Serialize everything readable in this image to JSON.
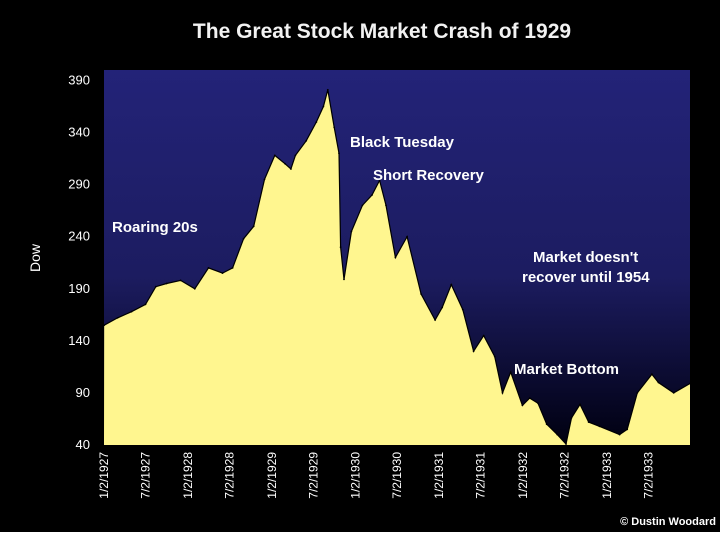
{
  "chart_data": {
    "type": "area",
    "title": "The Great Stock Market Crash of 1929",
    "xlabel": "",
    "ylabel": "Dow",
    "ylim": [
      40,
      400
    ],
    "yticks": [
      40,
      90,
      140,
      190,
      240,
      290,
      340,
      390
    ],
    "x_tick_labels": [
      "1/2/1927",
      "7/2/1927",
      "1/2/1928",
      "7/2/1928",
      "1/2/1929",
      "7/2/1929",
      "1/2/1930",
      "7/2/1930",
      "1/2/1931",
      "7/2/1931",
      "1/2/1932",
      "7/2/1932",
      "1/2/1933",
      "7/2/1933"
    ],
    "xlim": [
      "1927-01-01",
      "1933-12-31"
    ],
    "grid": false,
    "legend": "none",
    "colors": {
      "fill": "#fff68f",
      "line": "#000000",
      "plot_top": "#232378",
      "plot_mid": "#1c1c60",
      "plot_bottom": "#000010"
    },
    "series": [
      {
        "x": [
          "1927-01-02",
          "1927-03-01",
          "1927-05-01",
          "1927-07-01",
          "1927-08-15",
          "1927-10-01",
          "1927-12-01",
          "1928-02-01",
          "1928-04-01",
          "1928-06-01",
          "1928-07-15",
          "1928-09-01",
          "1928-10-15",
          "1928-12-01",
          "1929-01-15",
          "1929-03-01",
          "1929-03-26",
          "1929-04-15",
          "1929-06-01",
          "1929-07-15",
          "1929-08-15",
          "1929-09-03",
          "1929-10-01",
          "1929-10-22",
          "1929-10-29",
          "1929-11-13",
          "1929-12-15",
          "1930-02-01",
          "1930-03-15",
          "1930-04-17",
          "1930-05-15",
          "1930-06-25",
          "1930-08-15",
          "1930-10-15",
          "1930-12-15",
          "1931-01-15",
          "1931-02-24",
          "1931-04-15",
          "1931-06-01",
          "1931-07-15",
          "1931-09-01",
          "1931-10-05",
          "1931-11-10",
          "1931-12-31",
          "1932-02-01",
          "1932-03-08",
          "1932-04-15",
          "1932-05-31",
          "1932-07-08",
          "1932-08-01",
          "1932-09-07",
          "1932-10-15",
          "1932-12-01",
          "1933-02-27",
          "1933-04-01",
          "1933-05-15",
          "1933-07-18",
          "1933-08-15",
          "1933-10-21",
          "1933-12-31"
        ],
        "values": [
          155,
          162,
          168,
          175,
          192,
          195,
          198,
          190,
          210,
          205,
          210,
          238,
          250,
          295,
          318,
          310,
          305,
          318,
          332,
          350,
          365,
          381,
          345,
          320,
          230,
          199,
          245,
          270,
          280,
          294,
          270,
          220,
          240,
          185,
          160,
          172,
          194,
          170,
          130,
          145,
          125,
          90,
          110,
          78,
          85,
          80,
          60,
          50,
          41,
          66,
          79,
          62,
          58,
          50,
          55,
          90,
          108,
          100,
          90,
          99
        ]
      }
    ],
    "annotations": [
      "Roaring 20s",
      "Black Tuesday",
      "Short Recovery",
      "Market doesn't",
      "recover until 1954",
      "Market Bottom"
    ],
    "credit": "© Dustin Woodard"
  }
}
